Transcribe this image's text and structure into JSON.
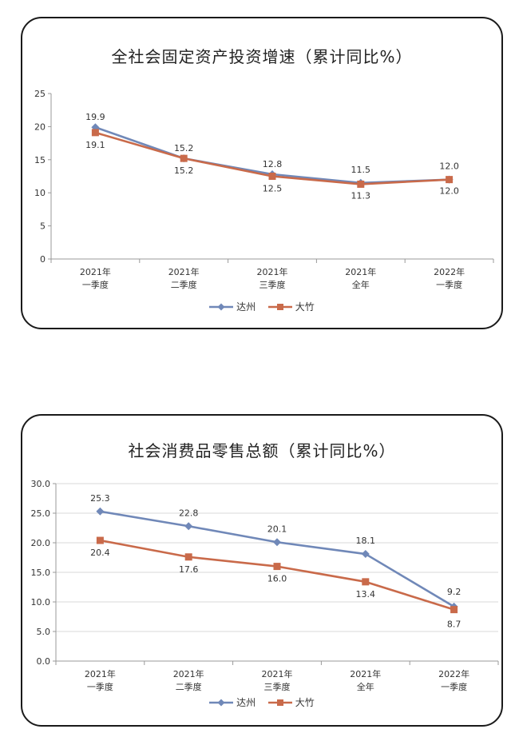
{
  "colors": {
    "dazhou": "#7088b8",
    "dazhu": "#c96a4a",
    "axis": "#999999",
    "grid": "#d9d9d9",
    "text": "#333333"
  },
  "chart_data": [
    {
      "type": "line",
      "title": "全社会固定资产投资增速（累计同比%）",
      "categories": [
        "2021年|一季度",
        "2021年|二季度",
        "2021年|三季度",
        "2021年|全年",
        "2022年|一季度"
      ],
      "ylim": [
        0,
        25
      ],
      "yticks": [
        "0",
        "5",
        "10",
        "15",
        "20",
        "25"
      ],
      "ytick_values": [
        0,
        5,
        10,
        15,
        20,
        25
      ],
      "grid": false,
      "legend": "bottom",
      "series": [
        {
          "name": "达州",
          "marker": "diamond",
          "values": [
            19.9,
            15.2,
            12.8,
            11.5,
            12.0
          ],
          "labels": [
            "19.9",
            "15.2",
            "12.8",
            "11.5",
            "12.0"
          ]
        },
        {
          "name": "大竹",
          "marker": "square",
          "values": [
            19.1,
            15.2,
            12.5,
            11.3,
            12.0
          ],
          "labels": [
            "19.1",
            "15.2",
            "12.5",
            "11.3",
            "12.0"
          ]
        }
      ]
    },
    {
      "type": "line",
      "title": "社会消费品零售总额（累计同比%）",
      "categories": [
        "2021年|一季度",
        "2021年|二季度",
        "2021年|三季度",
        "2021年|全年",
        "2022年|一季度"
      ],
      "ylim": [
        0,
        30
      ],
      "yticks": [
        "0.0",
        "5.0",
        "10.0",
        "15.0",
        "20.0",
        "25.0",
        "30.0"
      ],
      "ytick_values": [
        0,
        5,
        10,
        15,
        20,
        25,
        30
      ],
      "grid": true,
      "legend": "bottom",
      "series": [
        {
          "name": "达州",
          "marker": "diamond",
          "values": [
            25.3,
            22.8,
            20.1,
            18.1,
            9.2
          ],
          "labels": [
            "25.3",
            "22.8",
            "20.1",
            "18.1",
            "9.2"
          ]
        },
        {
          "name": "大竹",
          "marker": "square",
          "values": [
            20.4,
            17.6,
            16.0,
            13.4,
            8.7
          ],
          "labels": [
            "20.4",
            "17.6",
            "16.0",
            "13.4",
            "8.7"
          ]
        }
      ]
    }
  ]
}
